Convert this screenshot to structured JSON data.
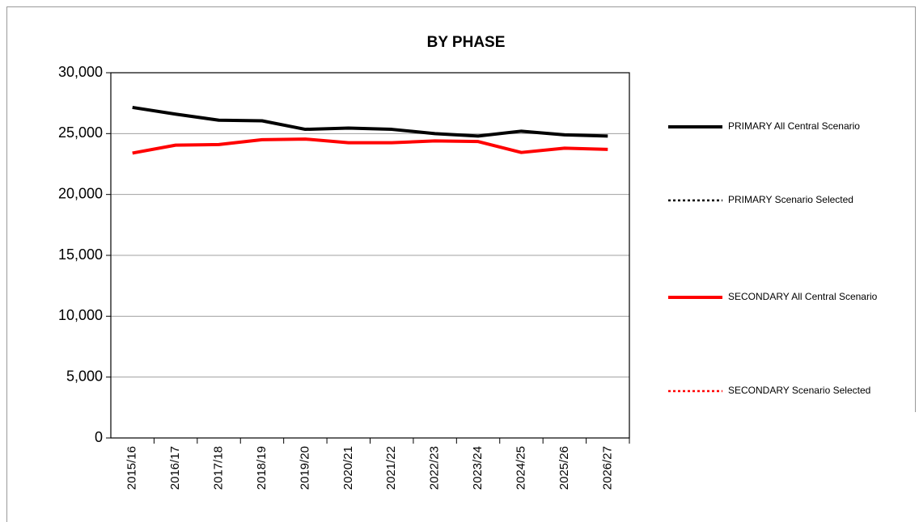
{
  "chart_data": {
    "type": "line",
    "title": "BY PHASE",
    "categories": [
      "2015/16",
      "2016/17",
      "2017/18",
      "2018/19",
      "2019/20",
      "2020/21",
      "2021/22",
      "2022/23",
      "2023/24",
      "2024/25",
      "2025/26",
      "2026/27"
    ],
    "series": [
      {
        "name": "PRIMARY All Central Scenario",
        "color": "#000000",
        "style": "solid",
        "values": [
          27150,
          26600,
          26100,
          26050,
          25350,
          25450,
          25350,
          25000,
          24800,
          25200,
          24900,
          24800
        ]
      },
      {
        "name": "PRIMARY Scenario Selected",
        "color": "#000000",
        "style": "dotted",
        "values": [
          null,
          null,
          null,
          null,
          null,
          null,
          null,
          null,
          null,
          null,
          null,
          null
        ]
      },
      {
        "name": "SECONDARY All Central Scenario",
        "color": "#ff0000",
        "style": "solid",
        "values": [
          23400,
          24050,
          24100,
          24500,
          24550,
          24250,
          24250,
          24400,
          24350,
          23450,
          23800,
          23700
        ]
      },
      {
        "name": "SECONDARY Scenario Selected",
        "color": "#ff0000",
        "style": "dotted",
        "values": [
          null,
          null,
          null,
          null,
          null,
          null,
          null,
          null,
          null,
          null,
          null,
          null
        ]
      }
    ],
    "ylim": [
      0,
      30000
    ],
    "yticks": [
      0,
      {
        "value": 5000,
        "label": "5,000"
      },
      {
        "value": 10000,
        "label": "10,000"
      },
      {
        "value": 15000,
        "label": "15,000"
      },
      {
        "value": 20000,
        "label": "20,000"
      },
      {
        "value": 25000,
        "label": "25,000"
      },
      {
        "value": 30000,
        "label": "30,000"
      }
    ],
    "grid": true
  }
}
